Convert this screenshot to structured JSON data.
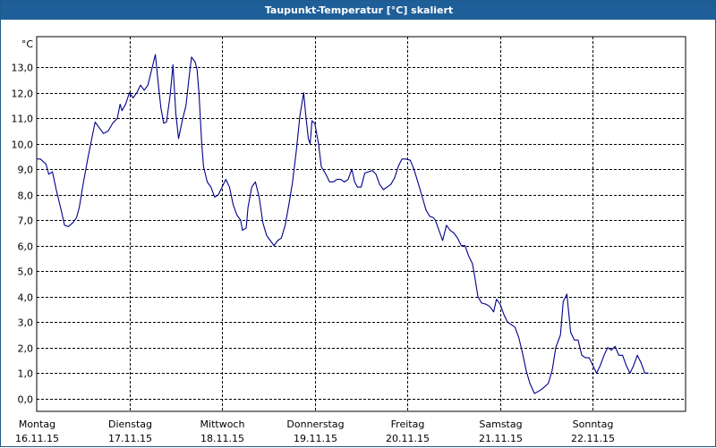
{
  "window": {
    "title": "Taupunkt-Temperatur [°C] skaliert"
  },
  "colors": {
    "titlebar": "#1f5f99",
    "line": "#00008b",
    "grid": "#000000",
    "background": "#ffffff"
  },
  "chart_data": {
    "type": "line",
    "title": "Taupunkt-Temperatur [°C] skaliert",
    "ylabel": "°C",
    "ylim": [
      -0.5,
      14.2
    ],
    "grid": true,
    "yticks": [
      "0,0",
      "1,0",
      "2,0",
      "3,0",
      "4,0",
      "5,0",
      "6,0",
      "7,0",
      "8,0",
      "9,0",
      "10,0",
      "11,0",
      "12,0",
      "13,0"
    ],
    "day_labels": [
      {
        "day": "Montag",
        "date": "16.11.15"
      },
      {
        "day": "Dienstag",
        "date": "17.11.15"
      },
      {
        "day": "Mittwoch",
        "date": "18.11.15"
      },
      {
        "day": "Donnerstag",
        "date": "19.11.15"
      },
      {
        "day": "Freitag",
        "date": "20.11.15"
      },
      {
        "day": "Samstag",
        "date": "21.11.15"
      },
      {
        "day": "Sonntag",
        "date": "22.11.15"
      }
    ],
    "x_unit": "days since 16.11.15 00:00",
    "xlim": [
      0,
      7.0
    ],
    "series": [
      {
        "name": "Taupunkt",
        "points": [
          [
            0.0,
            9.4
          ],
          [
            0.04,
            9.4
          ],
          [
            0.1,
            9.2
          ],
          [
            0.13,
            8.8
          ],
          [
            0.17,
            8.9
          ],
          [
            0.21,
            8.2
          ],
          [
            0.27,
            7.3
          ],
          [
            0.3,
            6.8
          ],
          [
            0.34,
            6.75
          ],
          [
            0.39,
            6.9
          ],
          [
            0.43,
            7.1
          ],
          [
            0.46,
            7.5
          ],
          [
            0.5,
            8.4
          ],
          [
            0.55,
            9.4
          ],
          [
            0.6,
            10.3
          ],
          [
            0.63,
            10.85
          ],
          [
            0.68,
            10.6
          ],
          [
            0.72,
            10.4
          ],
          [
            0.77,
            10.5
          ],
          [
            0.82,
            10.8
          ],
          [
            0.87,
            11.0
          ],
          [
            0.9,
            11.55
          ],
          [
            0.92,
            11.3
          ],
          [
            0.96,
            11.55
          ],
          [
            1.0,
            12.0
          ],
          [
            1.04,
            11.8
          ],
          [
            1.08,
            12.0
          ],
          [
            1.12,
            12.3
          ],
          [
            1.16,
            12.1
          ],
          [
            1.2,
            12.3
          ],
          [
            1.24,
            12.9
          ],
          [
            1.28,
            13.5
          ],
          [
            1.31,
            12.4
          ],
          [
            1.34,
            11.4
          ],
          [
            1.37,
            10.8
          ],
          [
            1.4,
            10.85
          ],
          [
            1.44,
            11.9
          ],
          [
            1.47,
            13.1
          ],
          [
            1.5,
            11.2
          ],
          [
            1.53,
            10.2
          ],
          [
            1.57,
            10.9
          ],
          [
            1.61,
            11.5
          ],
          [
            1.64,
            12.5
          ],
          [
            1.67,
            13.4
          ],
          [
            1.71,
            13.2
          ],
          [
            1.73,
            12.9
          ],
          [
            1.75,
            12.0
          ],
          [
            1.78,
            10.0
          ],
          [
            1.8,
            9.1
          ],
          [
            1.84,
            8.5
          ],
          [
            1.88,
            8.3
          ],
          [
            1.92,
            7.9
          ],
          [
            1.96,
            8.0
          ],
          [
            2.0,
            8.3
          ],
          [
            2.04,
            8.6
          ],
          [
            2.08,
            8.3
          ],
          [
            2.12,
            7.6
          ],
          [
            2.16,
            7.2
          ],
          [
            2.2,
            7.0
          ],
          [
            2.22,
            6.6
          ],
          [
            2.26,
            6.7
          ],
          [
            2.28,
            7.5
          ],
          [
            2.32,
            8.3
          ],
          [
            2.36,
            8.5
          ],
          [
            2.4,
            7.9
          ],
          [
            2.44,
            6.9
          ],
          [
            2.48,
            6.4
          ],
          [
            2.52,
            6.2
          ],
          [
            2.56,
            6.0
          ],
          [
            2.6,
            6.2
          ],
          [
            2.64,
            6.3
          ],
          [
            2.68,
            6.8
          ],
          [
            2.72,
            7.6
          ],
          [
            2.76,
            8.5
          ],
          [
            2.8,
            9.7
          ],
          [
            2.84,
            11.1
          ],
          [
            2.88,
            12.0
          ],
          [
            2.9,
            11.2
          ],
          [
            2.93,
            10.2
          ],
          [
            2.95,
            10.0
          ],
          [
            2.97,
            10.9
          ],
          [
            3.0,
            10.8
          ],
          [
            3.02,
            10.4
          ],
          [
            3.04,
            10.0
          ],
          [
            3.07,
            9.1
          ],
          [
            3.12,
            8.8
          ],
          [
            3.16,
            8.5
          ],
          [
            3.2,
            8.5
          ],
          [
            3.24,
            8.6
          ],
          [
            3.28,
            8.6
          ],
          [
            3.32,
            8.5
          ],
          [
            3.36,
            8.6
          ],
          [
            3.4,
            9.0
          ],
          [
            3.43,
            8.5
          ],
          [
            3.46,
            8.3
          ],
          [
            3.5,
            8.3
          ],
          [
            3.54,
            8.85
          ],
          [
            3.58,
            8.9
          ],
          [
            3.62,
            8.95
          ],
          [
            3.66,
            8.8
          ],
          [
            3.7,
            8.4
          ],
          [
            3.74,
            8.2
          ],
          [
            3.78,
            8.3
          ],
          [
            3.82,
            8.4
          ],
          [
            3.86,
            8.65
          ],
          [
            3.9,
            9.1
          ],
          [
            3.94,
            9.4
          ],
          [
            3.98,
            9.4
          ],
          [
            4.03,
            9.35
          ],
          [
            4.07,
            9.0
          ],
          [
            4.12,
            8.4
          ],
          [
            4.16,
            7.9
          ],
          [
            4.2,
            7.4
          ],
          [
            4.24,
            7.15
          ],
          [
            4.28,
            7.1
          ],
          [
            4.3,
            7.0
          ],
          [
            4.35,
            6.5
          ],
          [
            4.38,
            6.2
          ],
          [
            4.42,
            6.8
          ],
          [
            4.46,
            6.6
          ],
          [
            4.5,
            6.5
          ],
          [
            4.54,
            6.3
          ],
          [
            4.58,
            6.0
          ],
          [
            4.62,
            6.0
          ],
          [
            4.66,
            5.6
          ],
          [
            4.7,
            5.3
          ],
          [
            4.72,
            4.9
          ],
          [
            4.76,
            4.0
          ],
          [
            4.8,
            3.75
          ],
          [
            4.85,
            3.7
          ],
          [
            4.89,
            3.6
          ],
          [
            4.93,
            3.4
          ],
          [
            4.96,
            3.9
          ],
          [
            5.0,
            3.7
          ],
          [
            5.04,
            3.3
          ],
          [
            5.08,
            3.0
          ],
          [
            5.12,
            2.9
          ],
          [
            5.16,
            2.8
          ],
          [
            5.2,
            2.4
          ],
          [
            5.24,
            1.8
          ],
          [
            5.28,
            1.1
          ],
          [
            5.32,
            0.6
          ],
          [
            5.37,
            0.2
          ],
          [
            5.42,
            0.3
          ],
          [
            5.46,
            0.4
          ],
          [
            5.52,
            0.6
          ],
          [
            5.56,
            1.1
          ],
          [
            5.6,
            2.0
          ],
          [
            5.65,
            2.5
          ],
          [
            5.68,
            3.8
          ],
          [
            5.72,
            4.1
          ],
          [
            5.76,
            2.6
          ],
          [
            5.8,
            2.3
          ],
          [
            5.84,
            2.3
          ],
          [
            5.88,
            1.7
          ],
          [
            5.92,
            1.6
          ],
          [
            5.96,
            1.6
          ],
          [
            6.0,
            1.3
          ],
          [
            6.04,
            1.0
          ],
          [
            6.08,
            1.3
          ],
          [
            6.12,
            1.7
          ],
          [
            6.16,
            2.0
          ],
          [
            6.2,
            1.9
          ],
          [
            6.24,
            2.05
          ],
          [
            6.28,
            1.7
          ],
          [
            6.32,
            1.7
          ],
          [
            6.36,
            1.3
          ],
          [
            6.4,
            1.0
          ],
          [
            6.44,
            1.3
          ],
          [
            6.48,
            1.7
          ],
          [
            6.52,
            1.4
          ],
          [
            6.56,
            1.0
          ],
          [
            6.6,
            1.0
          ]
        ]
      }
    ]
  }
}
